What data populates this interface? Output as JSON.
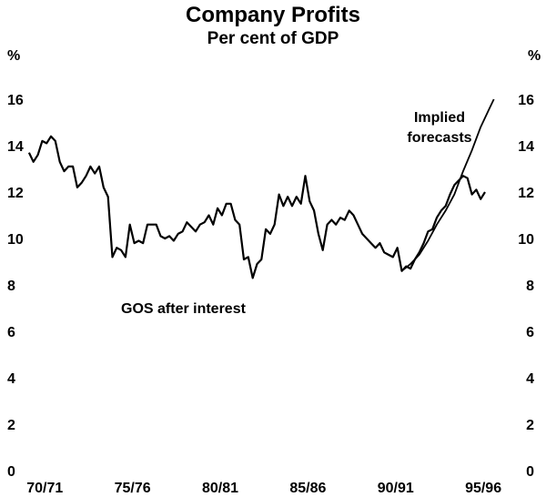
{
  "chart_data": {
    "type": "line",
    "title": "Company Profits",
    "subtitle": "Per cent of GDP",
    "y_unit_left": "%",
    "y_unit_right": "%",
    "ylim": [
      0,
      16
    ],
    "y_ticks": [
      "0",
      "2",
      "4",
      "6",
      "8",
      "10",
      "12",
      "14",
      "16"
    ],
    "x_range": [
      1969.5,
      1997.0
    ],
    "x_ticks": [
      {
        "label": "70/71",
        "x": 1970.5
      },
      {
        "label": "75/76",
        "x": 1975.5
      },
      {
        "label": "80/81",
        "x": 1980.5
      },
      {
        "label": "85/86",
        "x": 1985.5
      },
      {
        "label": "90/91",
        "x": 1990.5
      },
      {
        "label": "95/96",
        "x": 1995.5
      }
    ],
    "grid": false,
    "annotations": [
      {
        "text": "GOS after interest",
        "series": "GOS after interest"
      },
      {
        "text": "Implied",
        "series": "Implied forecasts"
      },
      {
        "text": "forecasts",
        "series": "Implied forecasts"
      }
    ],
    "series": [
      {
        "name": "GOS after interest",
        "x": [
          1969.6,
          1969.85,
          1970.1,
          1970.35,
          1970.6,
          1970.85,
          1971.1,
          1971.35,
          1971.6,
          1971.85,
          1972.1,
          1972.35,
          1972.6,
          1972.85,
          1973.1,
          1973.35,
          1973.6,
          1973.85,
          1974.1,
          1974.35,
          1974.6,
          1974.85,
          1975.1,
          1975.35,
          1975.6,
          1975.85,
          1976.1,
          1976.35,
          1976.6,
          1976.85,
          1977.1,
          1977.35,
          1977.6,
          1977.85,
          1978.1,
          1978.35,
          1978.6,
          1978.85,
          1979.1,
          1979.35,
          1979.6,
          1979.85,
          1980.1,
          1980.35,
          1980.6,
          1980.85,
          1981.1,
          1981.35,
          1981.6,
          1981.85,
          1982.1,
          1982.35,
          1982.6,
          1982.85,
          1983.1,
          1983.35,
          1983.6,
          1983.85,
          1984.1,
          1984.35,
          1984.6,
          1984.85,
          1985.1,
          1985.35,
          1985.6,
          1985.85,
          1986.1,
          1986.35,
          1986.6,
          1986.85,
          1987.1,
          1987.35,
          1987.6,
          1987.85,
          1988.1,
          1988.35,
          1988.6,
          1988.85,
          1989.1,
          1989.35,
          1989.6,
          1989.85,
          1990.1,
          1990.35,
          1990.6,
          1990.85,
          1991.1,
          1991.35,
          1991.6,
          1991.85,
          1992.1,
          1992.35,
          1992.6,
          1992.85,
          1993.1,
          1993.35,
          1993.6,
          1993.85,
          1994.1,
          1994.35,
          1994.6,
          1994.85,
          1995.1,
          1995.35,
          1995.6
        ],
        "y": [
          13.7,
          13.3,
          13.6,
          14.2,
          14.1,
          14.4,
          14.2,
          13.3,
          12.9,
          13.1,
          13.1,
          12.2,
          12.4,
          12.7,
          13.1,
          12.8,
          13.1,
          12.2,
          11.8,
          9.2,
          9.6,
          9.5,
          9.2,
          10.6,
          9.8,
          9.9,
          9.8,
          10.6,
          10.6,
          10.6,
          10.1,
          10.0,
          10.1,
          9.9,
          10.2,
          10.3,
          10.7,
          10.5,
          10.3,
          10.6,
          10.7,
          11.0,
          10.6,
          11.3,
          11.0,
          11.5,
          11.5,
          10.8,
          10.6,
          9.1,
          9.2,
          8.3,
          8.9,
          9.1,
          10.4,
          10.2,
          10.6,
          11.9,
          11.4,
          11.8,
          11.4,
          11.8,
          11.5,
          12.7,
          11.6,
          11.2,
          10.2,
          9.5,
          10.6,
          10.8,
          10.6,
          10.9,
          10.8,
          11.2,
          11.0,
          10.6,
          10.2,
          10.0,
          9.8,
          9.6,
          9.8,
          9.4,
          9.3,
          9.2,
          9.6,
          8.6,
          8.8,
          8.7,
          9.1,
          9.4,
          9.8,
          10.3,
          10.4,
          10.9,
          11.2,
          11.4,
          11.9,
          12.3,
          12.5,
          12.7,
          12.6,
          11.9,
          12.1,
          11.7,
          12.0
        ]
      },
      {
        "name": "Implied forecasts",
        "x": [
          1990.85,
          1991.35,
          1991.85,
          1992.35,
          1992.85,
          1993.35,
          1993.85,
          1994.35,
          1994.85,
          1995.35,
          1995.85,
          1996.1
        ],
        "y": [
          8.6,
          8.9,
          9.3,
          9.9,
          10.6,
          11.2,
          11.9,
          12.9,
          13.8,
          14.8,
          15.6,
          16.0
        ]
      }
    ]
  }
}
